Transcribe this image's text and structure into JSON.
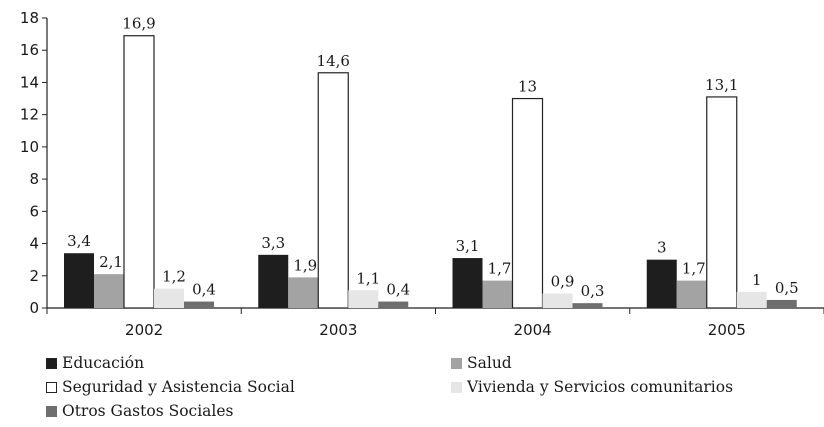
{
  "chart_data": {
    "type": "bar",
    "title": "",
    "xlabel": "",
    "ylabel": "",
    "ylim": [
      0,
      18
    ],
    "yticks": [
      0,
      2,
      4,
      6,
      8,
      10,
      12,
      14,
      16,
      18
    ],
    "categories": [
      "2002",
      "2003",
      "2004",
      "2005"
    ],
    "series": [
      {
        "name": "Educación",
        "values": [
          3.4,
          3.3,
          3.1,
          3.0
        ],
        "labels": [
          "3,4",
          "3,3",
          "3,1",
          "3"
        ],
        "color": "#1e1e1e"
      },
      {
        "name": "Salud",
        "values": [
          2.1,
          1.9,
          1.7,
          1.7
        ],
        "labels": [
          "2,1",
          "1,9",
          "1,7",
          "1,7"
        ],
        "color": "#a3a3a3"
      },
      {
        "name": "Seguridad y Asistencia Social",
        "values": [
          16.9,
          14.6,
          13.0,
          13.1
        ],
        "labels": [
          "16,9",
          "14,6",
          "13",
          "13,1"
        ],
        "color": "#ffffff"
      },
      {
        "name": "Vivienda y Servicios comunitarios",
        "values": [
          1.2,
          1.1,
          0.9,
          1.0
        ],
        "labels": [
          "1,2",
          "1,1",
          "0,9",
          "1"
        ],
        "color": "#e6e6e6"
      },
      {
        "name": "Otros Gastos Sociales",
        "values": [
          0.4,
          0.4,
          0.3,
          0.5
        ],
        "labels": [
          "0,4",
          "0,4",
          "0,3",
          "0,5"
        ],
        "color": "#6e6e6e"
      }
    ],
    "grid": false,
    "legend_position": "bottom"
  }
}
